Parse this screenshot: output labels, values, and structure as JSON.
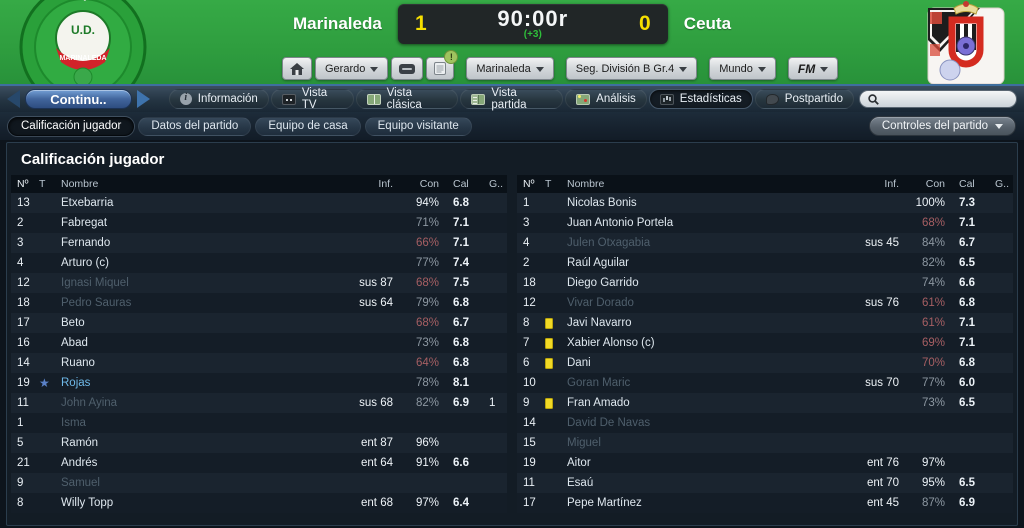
{
  "header": {
    "home_team": "Marinaleda",
    "away_team": "Ceuta",
    "score_home": "1",
    "score_away": "0",
    "clock": "90:00r",
    "extra_time": "(+3)",
    "alert_badge": "!",
    "toolbar": {
      "manager": "Gerardo",
      "club": "Marinaleda",
      "league": "Seg. División B Gr.4",
      "world": "Mundo",
      "fm": "FM"
    }
  },
  "nav": {
    "continue_label": "Continu..",
    "tabs": [
      {
        "label": "Información",
        "icon": "info",
        "active": false
      },
      {
        "label": "Vista TV",
        "icon": "tv",
        "active": false
      },
      {
        "label": "Vista clásica",
        "icon": "pitch",
        "active": false
      },
      {
        "label": "Vista partida",
        "icon": "split",
        "active": false
      },
      {
        "label": "Análisis",
        "icon": "analysis",
        "active": false
      },
      {
        "label": "Estadísticas",
        "icon": "stats",
        "active": true
      },
      {
        "label": "Postpartido",
        "icon": "whistle",
        "active": false
      }
    ],
    "search_value": ""
  },
  "subnav": {
    "tabs": [
      "Calificación jugador",
      "Datos del partido",
      "Equipo de casa",
      "Equipo visitante"
    ],
    "active_index": 0,
    "controls_label": "Controles del partido"
  },
  "content": {
    "title": "Calificación jugador",
    "columns": {
      "num": "Nº",
      "t": "T",
      "name": "Nombre",
      "inf": "Inf.",
      "con": "Con",
      "cal": "Cal",
      "g": "G.."
    },
    "home_players": [
      {
        "num": "13",
        "name": "Etxebarria",
        "inf": "",
        "con": "94%",
        "lvl": "high",
        "cal": "6.8",
        "g": ""
      },
      {
        "num": "2",
        "name": "Fabregat",
        "inf": "",
        "con": "71%",
        "lvl": "mid",
        "cal": "7.1",
        "g": ""
      },
      {
        "num": "3",
        "name": "Fernando",
        "inf": "",
        "con": "66%",
        "lvl": "low",
        "cal": "7.1",
        "g": ""
      },
      {
        "num": "4",
        "name": "Arturo (c)",
        "inf": "",
        "con": "77%",
        "lvl": "mid",
        "cal": "7.4",
        "g": ""
      },
      {
        "num": "12",
        "name": "Ignasi Miquel",
        "out": true,
        "inf": "sus 87",
        "con": "68%",
        "lvl": "low",
        "cal": "7.5",
        "g": ""
      },
      {
        "num": "18",
        "name": "Pedro Sauras",
        "out": true,
        "inf": "sus 64",
        "con": "79%",
        "lvl": "mid",
        "cal": "6.8",
        "g": ""
      },
      {
        "num": "17",
        "name": "Beto",
        "inf": "",
        "con": "68%",
        "lvl": "low",
        "cal": "6.7",
        "g": ""
      },
      {
        "num": "16",
        "name": "Abad",
        "inf": "",
        "con": "73%",
        "lvl": "mid",
        "cal": "6.8",
        "g": ""
      },
      {
        "num": "14",
        "name": "Ruano",
        "inf": "",
        "con": "64%",
        "lvl": "low",
        "cal": "6.8",
        "g": ""
      },
      {
        "num": "19",
        "name": "Rojas",
        "star": true,
        "inf": "",
        "con": "78%",
        "lvl": "mid",
        "cal": "8.1",
        "g": ""
      },
      {
        "num": "11",
        "name": "John Ayina",
        "out": true,
        "inf": "sus 68",
        "con": "82%",
        "lvl": "mid",
        "cal": "6.9",
        "g": "1"
      },
      {
        "num": "1",
        "name": "Isma",
        "out": true,
        "inf": "",
        "con": "",
        "cal": "",
        "g": ""
      },
      {
        "num": "5",
        "name": "Ramón",
        "inf": "ent 87",
        "con": "96%",
        "lvl": "high",
        "cal": "",
        "g": ""
      },
      {
        "num": "21",
        "name": "Andrés",
        "inf": "ent 64",
        "con": "91%",
        "lvl": "high",
        "cal": "6.6",
        "g": ""
      },
      {
        "num": "9",
        "name": "Samuel",
        "out": true,
        "inf": "",
        "con": "",
        "cal": "",
        "g": ""
      },
      {
        "num": "8",
        "name": "Willy Topp",
        "inf": "ent 68",
        "con": "97%",
        "lvl": "high",
        "cal": "6.4",
        "g": ""
      }
    ],
    "away_players": [
      {
        "num": "1",
        "name": "Nicolas Bonis",
        "inf": "",
        "con": "100%",
        "lvl": "high",
        "cal": "7.3",
        "g": ""
      },
      {
        "num": "3",
        "name": "Juan Antonio Portela",
        "inf": "",
        "con": "68%",
        "lvl": "low",
        "cal": "7.1",
        "g": ""
      },
      {
        "num": "4",
        "name": "Julen Otxagabia",
        "out": true,
        "inf": "sus 45",
        "con": "84%",
        "lvl": "mid",
        "cal": "6.7",
        "g": ""
      },
      {
        "num": "2",
        "name": "Raúl Aguilar",
        "inf": "",
        "con": "82%",
        "lvl": "mid",
        "cal": "6.5",
        "g": ""
      },
      {
        "num": "18",
        "name": "Diego Garrido",
        "inf": "",
        "con": "74%",
        "lvl": "mid",
        "cal": "6.6",
        "g": ""
      },
      {
        "num": "12",
        "name": "Vivar Dorado",
        "out": true,
        "inf": "sus 76",
        "con": "61%",
        "lvl": "low",
        "cal": "6.8",
        "g": ""
      },
      {
        "num": "8",
        "name": "Javi Navarro",
        "card": "yellow",
        "inf": "",
        "con": "61%",
        "lvl": "low",
        "cal": "7.1",
        "g": ""
      },
      {
        "num": "7",
        "name": "Xabier Alonso (c)",
        "card": "yellow",
        "inf": "",
        "con": "69%",
        "lvl": "low",
        "cal": "7.1",
        "g": ""
      },
      {
        "num": "6",
        "name": "Dani",
        "card": "yellow",
        "inf": "",
        "con": "70%",
        "lvl": "low",
        "cal": "6.8",
        "g": ""
      },
      {
        "num": "10",
        "name": "Goran Maric",
        "out": true,
        "inf": "sus 70",
        "con": "77%",
        "lvl": "mid",
        "cal": "6.0",
        "g": ""
      },
      {
        "num": "9",
        "name": "Fran Amado",
        "card": "yellow",
        "inf": "",
        "con": "73%",
        "lvl": "mid",
        "cal": "6.5",
        "g": ""
      },
      {
        "num": "14",
        "name": "David De Navas",
        "out": true,
        "inf": "",
        "con": "",
        "cal": "",
        "g": ""
      },
      {
        "num": "15",
        "name": "Miguel",
        "out": true,
        "inf": "",
        "con": "",
        "cal": "",
        "g": ""
      },
      {
        "num": "19",
        "name": "Aitor",
        "inf": "ent 76",
        "con": "97%",
        "lvl": "high",
        "cal": "",
        "g": ""
      },
      {
        "num": "11",
        "name": "Esaú",
        "inf": "ent 70",
        "con": "95%",
        "lvl": "high",
        "cal": "6.5",
        "g": ""
      },
      {
        "num": "17",
        "name": "Pepe Martínez",
        "inf": "ent 45",
        "con": "87%",
        "lvl": "mid",
        "cal": "6.9",
        "g": ""
      }
    ]
  },
  "colors": {
    "header_green": "#2f9e3f",
    "score_yellow": "#f6df00",
    "extra_time_green": "#2fbf3a",
    "con_high": "#edf3f8",
    "con_mid": "#8d98a2",
    "con_low": "#a65f63",
    "yellow_card": "#f2da25",
    "star_blue": "#5b82c8",
    "highlight_name_blue": "#6fb9e8"
  }
}
